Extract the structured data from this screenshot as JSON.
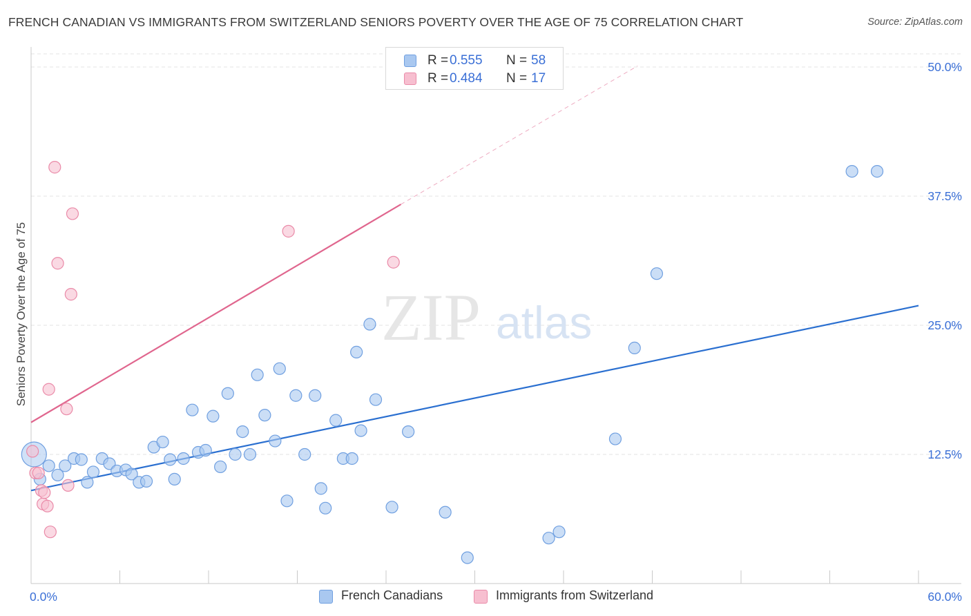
{
  "title": "FRENCH CANADIAN VS IMMIGRANTS FROM SWITZERLAND SENIORS POVERTY OVER THE AGE OF 75 CORRELATION CHART",
  "source": "Source: ZipAtlas.com",
  "watermark": {
    "zip": "ZIP",
    "atlas": "atlas"
  },
  "legend_stats": [
    {
      "r_label": "R =",
      "r_value": "0.555",
      "n_label": "N =",
      "n_value": "58",
      "color": "#a9c8f0",
      "border": "#6f9fe0"
    },
    {
      "r_label": "R =",
      "r_value": "0.484",
      "n_label": "N =",
      "n_value": "17",
      "color": "#f7bfd0",
      "border": "#ea8aa8"
    }
  ],
  "chart_data": {
    "type": "scatter",
    "xlabel": "",
    "ylabel": "Seniors Poverty Over the Age of 75",
    "xlim": [
      0,
      60
    ],
    "ylim": [
      0,
      50
    ],
    "x_tick_labels": [
      "0.0%",
      "60.0%"
    ],
    "y_ticks": [
      12.5,
      25.0,
      37.5,
      50.0
    ],
    "y_tick_labels": [
      "12.5%",
      "25.0%",
      "37.5%",
      "50.0%"
    ],
    "grid": true,
    "series": [
      {
        "name": "French Canadians",
        "color": "#a9c8f0",
        "stroke": "#6f9fe0",
        "line_color": "#2a6fd0",
        "trend": {
          "x": [
            0,
            60
          ],
          "y": [
            9.0,
            26.9
          ]
        },
        "points": [
          [
            0.2,
            12.5
          ],
          [
            0.6,
            10.1
          ],
          [
            1.2,
            11.4
          ],
          [
            1.8,
            10.5
          ],
          [
            2.3,
            11.4
          ],
          [
            2.9,
            12.1
          ],
          [
            3.4,
            12.0
          ],
          [
            3.8,
            9.8
          ],
          [
            4.2,
            10.8
          ],
          [
            4.8,
            12.1
          ],
          [
            5.3,
            11.6
          ],
          [
            5.8,
            10.9
          ],
          [
            6.4,
            11.0
          ],
          [
            6.8,
            10.6
          ],
          [
            7.3,
            9.8
          ],
          [
            7.8,
            9.9
          ],
          [
            8.3,
            13.2
          ],
          [
            8.9,
            13.7
          ],
          [
            9.4,
            12.0
          ],
          [
            9.7,
            10.1
          ],
          [
            10.3,
            12.1
          ],
          [
            10.9,
            16.8
          ],
          [
            11.3,
            12.7
          ],
          [
            11.8,
            12.9
          ],
          [
            12.3,
            16.2
          ],
          [
            12.8,
            11.3
          ],
          [
            13.3,
            18.4
          ],
          [
            13.8,
            12.5
          ],
          [
            14.3,
            14.7
          ],
          [
            14.8,
            12.5
          ],
          [
            15.3,
            20.2
          ],
          [
            15.8,
            16.3
          ],
          [
            16.5,
            13.8
          ],
          [
            16.8,
            20.8
          ],
          [
            17.3,
            8.0
          ],
          [
            17.9,
            18.2
          ],
          [
            18.5,
            12.5
          ],
          [
            19.2,
            18.2
          ],
          [
            19.6,
            9.2
          ],
          [
            19.9,
            7.3
          ],
          [
            20.6,
            15.8
          ],
          [
            21.1,
            12.1
          ],
          [
            21.7,
            12.1
          ],
          [
            22.0,
            22.4
          ],
          [
            22.3,
            14.8
          ],
          [
            22.9,
            25.1
          ],
          [
            23.3,
            17.8
          ],
          [
            24.4,
            7.4
          ],
          [
            25.5,
            14.7
          ],
          [
            28.0,
            6.9
          ],
          [
            29.5,
            2.5
          ],
          [
            35.0,
            4.4
          ],
          [
            35.7,
            5.0
          ],
          [
            39.5,
            14.0
          ],
          [
            40.8,
            22.8
          ],
          [
            42.3,
            30.0
          ],
          [
            55.5,
            39.9
          ],
          [
            57.2,
            39.9
          ]
        ]
      },
      {
        "name": "Immigrants from Switzerland",
        "color": "#f7bfd0",
        "stroke": "#ea8aa8",
        "line_color": "#e0668e",
        "trend": {
          "x": [
            0,
            25.0
          ],
          "y": [
            15.6,
            36.7
          ]
        },
        "trend_extension": {
          "x": [
            25.0,
            41.0
          ],
          "y": [
            36.7,
            50.1
          ]
        },
        "points": [
          [
            0.1,
            12.8
          ],
          [
            0.3,
            10.7
          ],
          [
            0.5,
            10.7
          ],
          [
            0.7,
            9.0
          ],
          [
            0.8,
            7.7
          ],
          [
            0.9,
            8.8
          ],
          [
            1.1,
            7.5
          ],
          [
            1.2,
            18.8
          ],
          [
            1.3,
            5.0
          ],
          [
            1.6,
            40.3
          ],
          [
            1.8,
            31.0
          ],
          [
            2.4,
            16.9
          ],
          [
            2.5,
            9.5
          ],
          [
            2.7,
            28.0
          ],
          [
            2.8,
            35.8
          ],
          [
            17.4,
            34.1
          ],
          [
            24.5,
            31.1
          ]
        ]
      }
    ]
  }
}
